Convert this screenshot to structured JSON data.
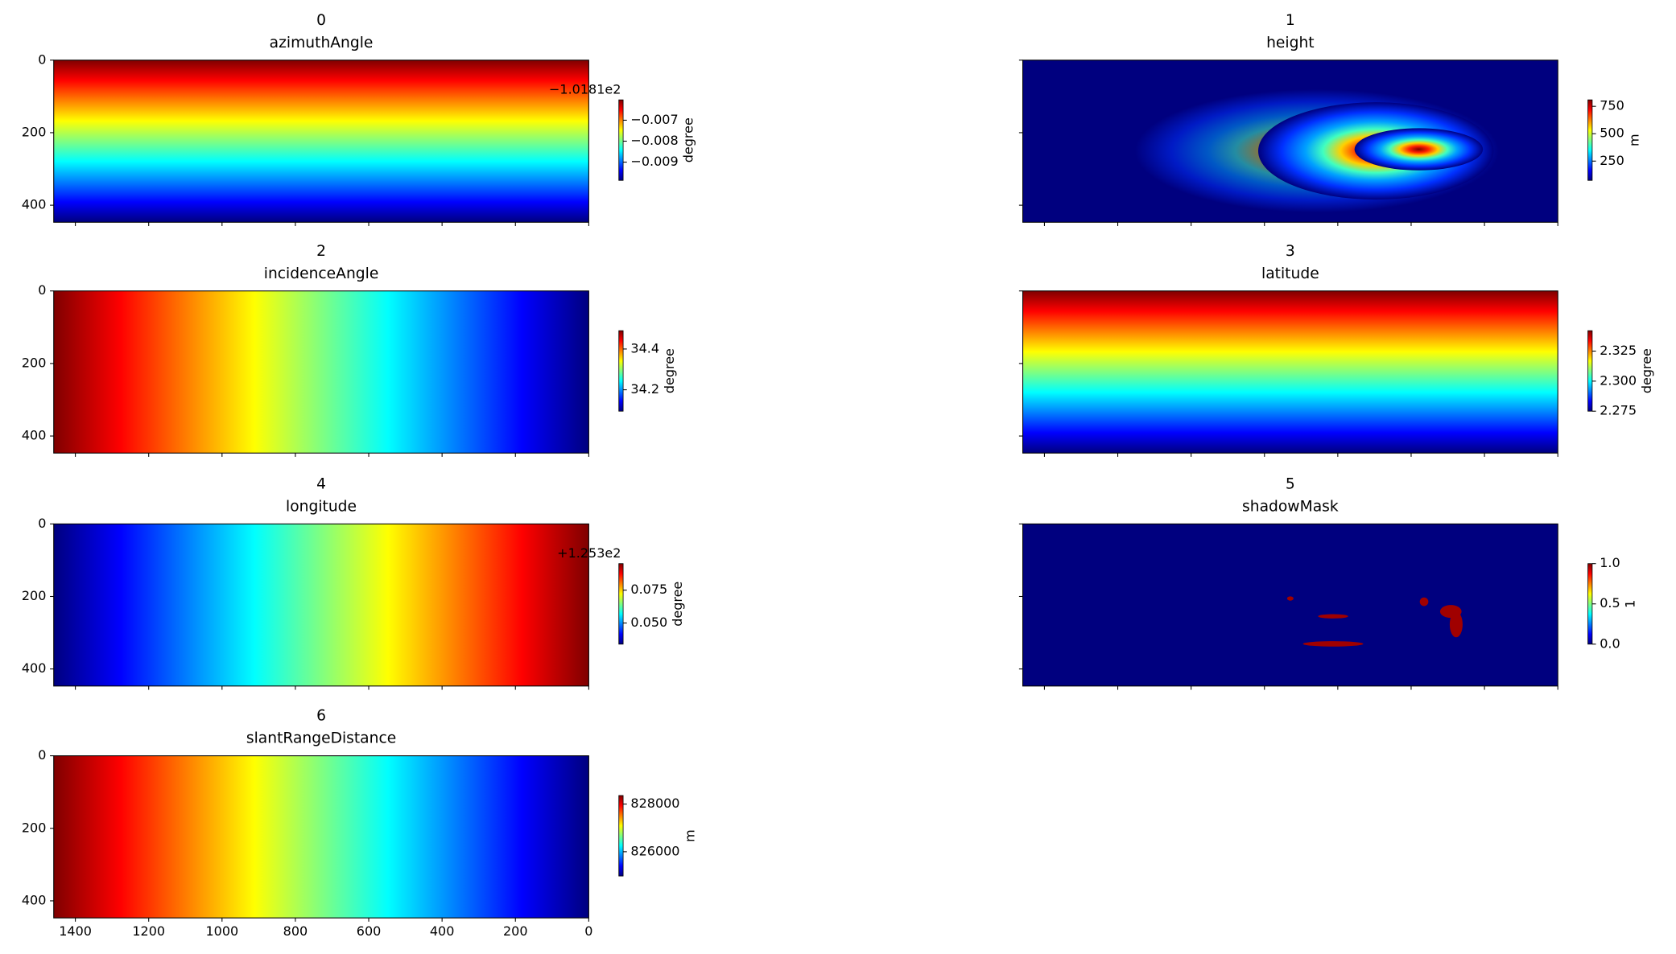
{
  "chart_data": [
    {
      "type": "heatmap",
      "title": "0",
      "subtitle": "azimuthAngle",
      "xlim": [
        1459,
        0
      ],
      "ylim": [
        447,
        0
      ],
      "xticks": [
        1400,
        1200,
        1000,
        800,
        600,
        400,
        200,
        0
      ],
      "yticks": [
        0,
        200,
        400
      ],
      "xticklabels": false,
      "yticklabels": true,
      "cmap": "jet",
      "colorbar": {
        "label": "degree",
        "lim": [
          -0.00987,
          -0.00603
        ],
        "offset": "−1.0181e2",
        "ticks": [
          {
            "value": -0.007,
            "label": "−0.007"
          },
          {
            "value": -0.008,
            "label": "−0.008"
          },
          {
            "value": -0.009,
            "label": "−0.009"
          }
        ]
      }
    },
    {
      "type": "heatmap",
      "title": "1",
      "subtitle": "height",
      "xlim": [
        1459,
        0
      ],
      "ylim": [
        447,
        0
      ],
      "xticks": [
        1400,
        1200,
        1000,
        800,
        600,
        400,
        200,
        0
      ],
      "yticks": [
        0,
        200,
        400
      ],
      "xticklabels": false,
      "yticklabels": false,
      "cmap": "jet",
      "colorbar": {
        "label": "m",
        "lim": [
          74,
          809
        ],
        "ticks": [
          750,
          500,
          250
        ]
      }
    },
    {
      "type": "heatmap",
      "title": "2",
      "subtitle": "incidenceAngle",
      "xlim": [
        1459,
        0
      ],
      "ylim": [
        447,
        0
      ],
      "xticks": [
        1400,
        1200,
        1000,
        800,
        600,
        400,
        200,
        0
      ],
      "yticks": [
        0,
        200,
        400
      ],
      "xticklabels": false,
      "yticklabels": true,
      "cmap": "jet",
      "colorbar": {
        "label": "degree",
        "lim": [
          34.095,
          34.49
        ],
        "ticks": [
          34.4,
          34.2
        ]
      }
    },
    {
      "type": "heatmap",
      "title": "3",
      "subtitle": "latitude",
      "xlim": [
        1459,
        0
      ],
      "ylim": [
        447,
        0
      ],
      "xticks": [
        1400,
        1200,
        1000,
        800,
        600,
        400,
        200,
        0
      ],
      "yticks": [
        0,
        200,
        400
      ],
      "xticklabels": false,
      "yticklabels": false,
      "cmap": "jet",
      "colorbar": {
        "label": "degree",
        "lim": [
          2.275,
          2.342
        ],
        "ticks": [
          {
            "value": 2.325,
            "label": "2.325"
          },
          {
            "value": 2.3,
            "label": "2.300"
          },
          {
            "value": 2.275,
            "label": "2.275"
          }
        ]
      }
    },
    {
      "type": "heatmap",
      "title": "4",
      "subtitle": "longitude",
      "xlim": [
        1459,
        0
      ],
      "ylim": [
        447,
        0
      ],
      "xticks": [
        1400,
        1200,
        1000,
        800,
        600,
        400,
        200,
        0
      ],
      "yticks": [
        0,
        200,
        400
      ],
      "xticklabels": false,
      "yticklabels": true,
      "cmap": "jet",
      "colorbar": {
        "label": "degree",
        "lim": [
          0.0339,
          0.0952
        ],
        "offset": "+1.253e2",
        "ticks": [
          {
            "value": 0.075,
            "label": "0.075"
          },
          {
            "value": 0.05,
            "label": "0.050"
          }
        ]
      }
    },
    {
      "type": "heatmap",
      "title": "5",
      "subtitle": "shadowMask",
      "xlim": [
        1459,
        0
      ],
      "ylim": [
        447,
        0
      ],
      "xticks": [
        1400,
        1200,
        1000,
        800,
        600,
        400,
        200,
        0
      ],
      "yticks": [
        0,
        200,
        400
      ],
      "xticklabels": false,
      "yticklabels": false,
      "cmap": "jet",
      "colorbar": {
        "label": "1",
        "lim": [
          0,
          1
        ],
        "ticks": [
          {
            "value": 1,
            "label": "1.0"
          },
          {
            "value": 0.5,
            "label": "0.5"
          },
          {
            "value": 0,
            "label": "0.0"
          }
        ]
      }
    },
    {
      "type": "heatmap",
      "title": "6",
      "subtitle": "slantRangeDistance",
      "xlim": [
        1459,
        0
      ],
      "ylim": [
        447,
        0
      ],
      "xticks": [
        1400,
        1200,
        1000,
        800,
        600,
        400,
        200,
        0
      ],
      "yticks": [
        0,
        200,
        400
      ],
      "xticklabels": true,
      "yticklabels": true,
      "cmap": "jet",
      "colorbar": {
        "label": "m",
        "lim": [
          824980,
          828360
        ],
        "ticks": [
          828000,
          826000
        ]
      }
    }
  ]
}
